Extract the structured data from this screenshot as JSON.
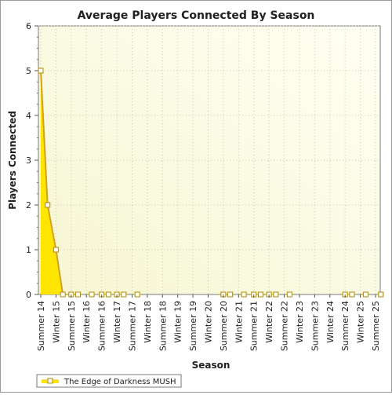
{
  "chart_data": {
    "type": "area",
    "title": "Average Players Connected By Season",
    "xlabel": "Season",
    "ylabel": "Players Connected",
    "ylim": [
      0,
      6
    ],
    "yticks": [
      0,
      1,
      2,
      3,
      4,
      5,
      6
    ],
    "grid": true,
    "legend_position": "bottom-left",
    "categories": [
      "Summer 14",
      "Winter 15",
      "Summer 15",
      "Winter 16",
      "Summer 16",
      "Winter 17",
      "Summer 17",
      "Winter 18",
      "Summer 18",
      "Winter 19",
      "Summer 19",
      "Winter 20",
      "Summer 20",
      "Winter 21",
      "Summer 21",
      "Winter 22",
      "Summer 22",
      "Winter 23",
      "Summer 23",
      "Winter 24",
      "Summer 24",
      "Winter 25",
      "Summer 25"
    ],
    "series": [
      {
        "name": "The Edge of Darkness MUSH",
        "color": "#FFE600",
        "line_color": "#D9A400",
        "points": [
          {
            "category": "Summer 14",
            "value": 5.0
          },
          {
            "category": "Summer 14",
            "value": 2.0
          },
          {
            "category": "Winter 15",
            "value": 1.0
          },
          {
            "category": "Winter 15",
            "value": 0
          },
          {
            "category": "Summer 15",
            "value": 0
          },
          {
            "category": "Summer 15",
            "value": 0
          },
          {
            "category": "Winter 16",
            "value": 0
          },
          {
            "category": "Summer 16",
            "value": 0
          },
          {
            "category": "Summer 16",
            "value": 0
          },
          {
            "category": "Winter 17",
            "value": 0
          },
          {
            "category": "Winter 17",
            "value": 0
          },
          {
            "category": "Summer 17",
            "value": 0
          },
          {
            "category": "Summer 20",
            "value": 0
          },
          {
            "category": "Summer 20",
            "value": 0
          },
          {
            "category": "Winter 21",
            "value": 0
          },
          {
            "category": "Summer 21",
            "value": 0
          },
          {
            "category": "Summer 21",
            "value": 0
          },
          {
            "category": "Winter 22",
            "value": 0
          },
          {
            "category": "Winter 22",
            "value": 0
          },
          {
            "category": "Summer 22",
            "value": 0
          },
          {
            "category": "Summer 24",
            "value": 0
          },
          {
            "category": "Summer 24",
            "value": 0
          },
          {
            "category": "Winter 25",
            "value": 0
          },
          {
            "category": "Summer 25",
            "value": 0
          }
        ]
      }
    ]
  }
}
